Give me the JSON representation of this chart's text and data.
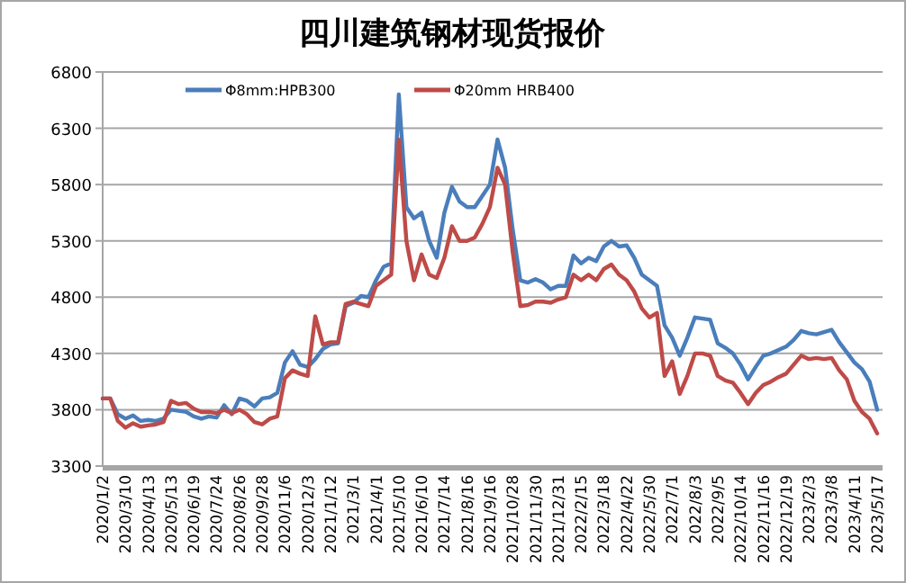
{
  "chart_data": {
    "type": "line",
    "title": "四川建筑钢材现货报价",
    "categories": [
      "2020/1/2",
      null,
      null,
      "2020/3/10",
      null,
      null,
      "2020/4/13",
      null,
      null,
      "2020/5/13",
      null,
      null,
      "2020/6/19",
      null,
      null,
      "2020/7/24",
      null,
      null,
      "2020/8/26",
      null,
      null,
      "2020/9/28",
      null,
      null,
      "2020/11/6",
      null,
      null,
      "2020/12/3",
      null,
      null,
      "2021/1/12",
      null,
      null,
      "2021/3/1",
      null,
      null,
      "2021/4/1",
      null,
      null,
      "2021/5/10",
      null,
      null,
      "2021/6/10",
      null,
      null,
      "2021/7/14",
      null,
      null,
      "2021/8/16",
      null,
      null,
      "2021/9/16",
      null,
      null,
      "2021/10/28",
      null,
      null,
      "2021/11/30",
      null,
      null,
      "2021/12/31",
      null,
      null,
      "2022/2/15",
      null,
      null,
      "2022/3/18",
      null,
      null,
      "2022/4/22",
      null,
      null,
      "2022/5/30",
      null,
      null,
      "2022/7/1",
      null,
      null,
      "2022/8/3",
      null,
      null,
      "2022/9/5",
      null,
      null,
      "2022/10/14",
      null,
      null,
      "2022/11/16",
      null,
      null,
      "2022/12/19",
      null,
      null,
      "2023/2/3",
      null,
      null,
      "2023/3/8",
      null,
      null,
      "2023/4/11",
      null,
      null,
      "2023/5/17"
    ],
    "series": [
      {
        "name": "Φ8mm:HPB300",
        "color": "#4a7ebb",
        "values": [
          3900,
          3900,
          3760,
          3720,
          3750,
          3700,
          3710,
          3700,
          3720,
          3800,
          3790,
          3780,
          3740,
          3720,
          3740,
          3730,
          3840,
          3760,
          3900,
          3880,
          3830,
          3900,
          3910,
          3950,
          4220,
          4320,
          4200,
          4180,
          4250,
          4340,
          4380,
          4390,
          4720,
          4750,
          4810,
          4800,
          4950,
          5070,
          5100,
          6600,
          5600,
          5500,
          5550,
          5300,
          5150,
          5550,
          5780,
          5650,
          5600,
          5600,
          5700,
          5800,
          6200,
          5950,
          5400,
          4950,
          4930,
          4960,
          4930,
          4870,
          4900,
          4900,
          5170,
          5100,
          5150,
          5120,
          5250,
          5300,
          5250,
          5260,
          5150,
          5000,
          4950,
          4900,
          4550,
          4440,
          4280,
          4440,
          4620,
          4610,
          4600,
          4390,
          4350,
          4300,
          4200,
          4070,
          4180,
          4280,
          4300,
          4330,
          4360,
          4420,
          4500,
          4480,
          4470,
          4490,
          4510,
          4400,
          4310,
          4220,
          4160,
          4050,
          3800
        ]
      },
      {
        "name": "Φ20mm HRB400",
        "color": "#be4b48",
        "values": [
          3900,
          3900,
          3700,
          3640,
          3680,
          3650,
          3660,
          3670,
          3690,
          3880,
          3850,
          3860,
          3810,
          3780,
          3780,
          3770,
          3800,
          3770,
          3800,
          3760,
          3690,
          3670,
          3720,
          3740,
          4080,
          4150,
          4120,
          4100,
          4630,
          4380,
          4400,
          4400,
          4740,
          4760,
          4740,
          4720,
          4900,
          4950,
          5000,
          6200,
          5300,
          4950,
          5180,
          5000,
          4970,
          5150,
          5430,
          5300,
          5300,
          5330,
          5450,
          5600,
          5950,
          5800,
          5200,
          4720,
          4730,
          4760,
          4760,
          4750,
          4780,
          4800,
          5000,
          4950,
          5000,
          4950,
          5050,
          5090,
          5000,
          4950,
          4850,
          4700,
          4620,
          4660,
          4100,
          4230,
          3940,
          4100,
          4300,
          4300,
          4280,
          4100,
          4060,
          4040,
          3950,
          3850,
          3950,
          4020,
          4050,
          4090,
          4120,
          4200,
          4280,
          4250,
          4260,
          4250,
          4260,
          4150,
          4070,
          3880,
          3780,
          3720,
          3590
        ]
      }
    ],
    "ylim": [
      3300,
      6800
    ],
    "yticks": [
      3300,
      3800,
      4300,
      4800,
      5300,
      5800,
      6300,
      6800
    ],
    "grid": "y",
    "legend": "top"
  }
}
